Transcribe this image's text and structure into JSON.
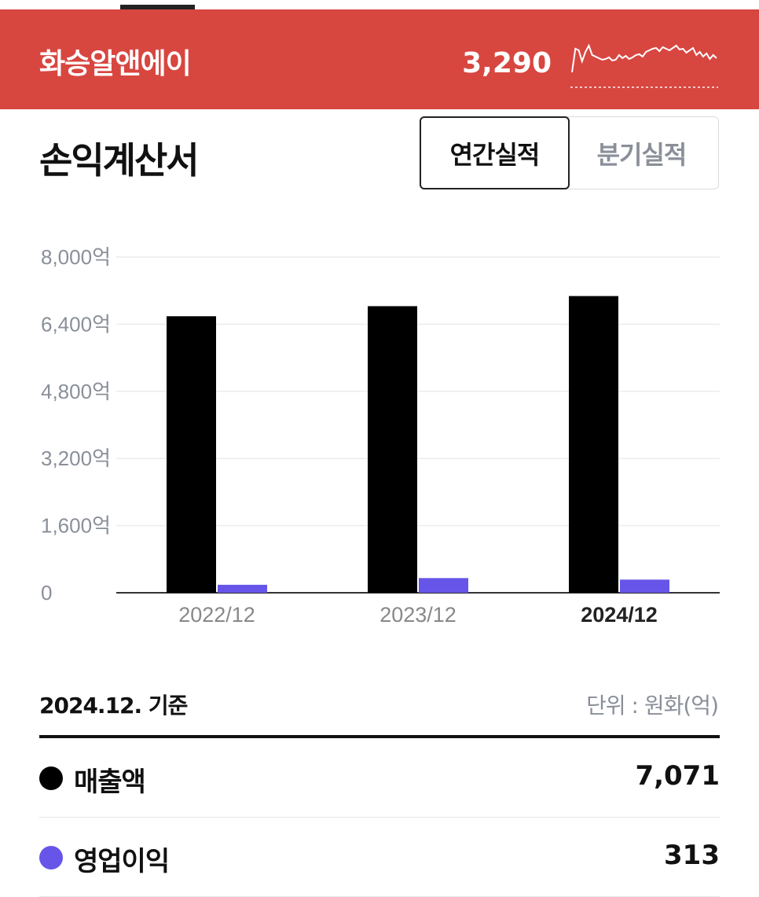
{
  "header": {
    "stock_name": "화승알앤에이",
    "price": "3,290",
    "sparkline": [
      58,
      28,
      30,
      44,
      32,
      24,
      36,
      38,
      40,
      42,
      41,
      39,
      43,
      42,
      36,
      40,
      37,
      41,
      39,
      36,
      35,
      38,
      32,
      30,
      28,
      27,
      31,
      26,
      28,
      30,
      27,
      24,
      29,
      28,
      33,
      30,
      27,
      36,
      32,
      38,
      34,
      41,
      36,
      40
    ]
  },
  "section": {
    "title": "손익계산서",
    "toggle_annual": "연간실적",
    "toggle_quarterly": "분기실적"
  },
  "chart_data": {
    "type": "bar",
    "categories": [
      "2022/12",
      "2023/12",
      "2024/12"
    ],
    "series": [
      {
        "name": "매출액",
        "values": [
          6590,
          6830,
          7071
        ],
        "color": "#000000"
      },
      {
        "name": "영업이익",
        "values": [
          190,
          350,
          313
        ],
        "color": "#6655e8"
      }
    ],
    "yticks": [
      {
        "value": 8000,
        "label": "8,000억"
      },
      {
        "value": 6400,
        "label": "6,400억"
      },
      {
        "value": 4800,
        "label": "4,800억"
      },
      {
        "value": 3200,
        "label": "3,200억"
      },
      {
        "value": 1600,
        "label": "1,600억"
      },
      {
        "value": 0,
        "label": "0"
      }
    ],
    "ylim": [
      0,
      8000
    ],
    "grid": true,
    "highlight_category": "2024/12"
  },
  "summary": {
    "basis": "2024.12. 기준",
    "unit": "단위 : 원화(억)",
    "rows": [
      {
        "label": "매출액",
        "value": "7,071",
        "color": "#000000"
      },
      {
        "label": "영업이익",
        "value": "313",
        "color": "#6655e8"
      }
    ]
  }
}
